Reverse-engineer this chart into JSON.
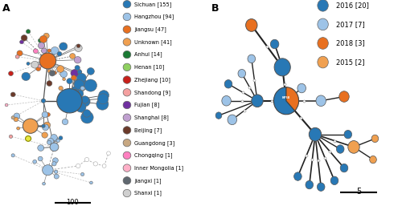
{
  "panel_a": {
    "title": "A",
    "legend_entries": [
      {
        "label": "Sichuan [155]",
        "color": "#2878B5"
      },
      {
        "label": "Hangzhou [94]",
        "color": "#9DC3E7"
      },
      {
        "label": "Jiangsu [47]",
        "color": "#E87020"
      },
      {
        "label": "Unknown [41]",
        "color": "#F0A050"
      },
      {
        "label": "Anhui [14]",
        "color": "#1A7A34"
      },
      {
        "label": "Henan [10]",
        "color": "#8FD060"
      },
      {
        "label": "Zhejiang [10]",
        "color": "#C8201A"
      },
      {
        "label": "Shandong [9]",
        "color": "#F4A0A0"
      },
      {
        "label": "Fujian [8]",
        "color": "#7030A0"
      },
      {
        "label": "Shanghai [8]",
        "color": "#C0A0D0"
      },
      {
        "label": "Beijing [7]",
        "color": "#6B3A2A"
      },
      {
        "label": "Guangdong [3]",
        "color": "#C8A882"
      },
      {
        "label": "Chongqing [1]",
        "color": "#FF80C0"
      },
      {
        "label": "Inner Mongolia [1]",
        "color": "#FFB0C8"
      },
      {
        "label": "Jiangxi [1]",
        "color": "#606870"
      },
      {
        "label": "Shanxi [1]",
        "color": "#D0D0D0"
      }
    ]
  },
  "panel_b": {
    "title": "B",
    "legend_entries": [
      {
        "label": "2016 [20]",
        "color": "#2878B5"
      },
      {
        "label": "2017 [7]",
        "color": "#9DC3E7"
      },
      {
        "label": "2018 [3]",
        "color": "#E87020"
      },
      {
        "label": "2015 [2]",
        "color": "#F0A050"
      }
    ]
  },
  "bg_color": "#ffffff"
}
